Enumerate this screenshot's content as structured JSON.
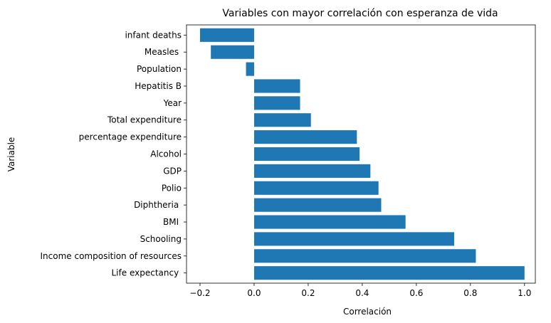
{
  "chart_data": {
    "type": "bar",
    "orientation": "horizontal",
    "title": "Variables con mayor correlación con esperanza de vida",
    "xlabel": "Correlación",
    "ylabel": "Variable",
    "categories": [
      "Life expectancy ",
      "Income composition of resources",
      "Schooling",
      " BMI ",
      "Diphtheria ",
      "Polio",
      "GDP",
      "Alcohol",
      "percentage expenditure",
      "Total expenditure",
      "Year",
      "Hepatitis B",
      "Population",
      "Measles ",
      "infant deaths"
    ],
    "values": [
      1.0,
      0.82,
      0.74,
      0.56,
      0.47,
      0.46,
      0.43,
      0.39,
      0.38,
      0.21,
      0.17,
      0.17,
      -0.03,
      -0.16,
      -0.2
    ],
    "xlim": [
      -0.25,
      1.04
    ],
    "xticks": [
      -0.2,
      0.0,
      0.2,
      0.4,
      0.6,
      0.8,
      1.0
    ],
    "xtick_labels": [
      "−0.2",
      "0.0",
      "0.2",
      "0.4",
      "0.6",
      "0.8",
      "1.0"
    ],
    "bar_color": "#1f77b4",
    "grid": false
  }
}
